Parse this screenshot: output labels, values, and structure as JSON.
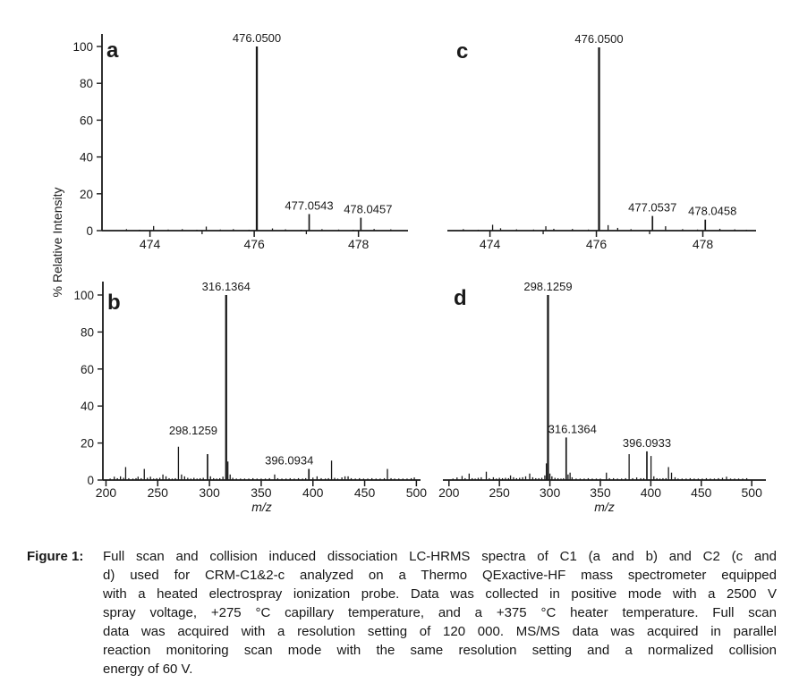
{
  "caption": {
    "label": "Figure 1:",
    "lines": [
      "Full scan and collision induced dissociation LC-HRMS spectra of C1 (a and b) and C2 (c and",
      "d) used for CRM-C1&2-c analyzed on a Thermo QExactive-HF mass spectrometer equipped",
      "with a heated electrospray ionization probe. Data was collected in positive mode with a 2500 V",
      "spray voltage, +275 °C capillary temperature, and a +375 °C heater temperature. Full scan",
      "data was acquired with a resolution setting of 120 000. MS/MS data was acquired in parallel",
      "reaction monitoring scan mode with the same resolution setting and a normalized collision",
      "energy of 60 V."
    ]
  },
  "chart_data": {
    "type": "bar",
    "variant": "mass-spectrum-grid",
    "shared_ylabel": "% Relative Intensity",
    "xlabel": "m/z",
    "ink_color": "#1a1a1a",
    "panels": [
      {
        "letter": "a",
        "xlim": [
          473.08,
          478.95
        ],
        "ylim": [
          0,
          100
        ],
        "x_major_ticks": [
          474,
          476,
          478
        ],
        "x_minor_ticks": [
          475,
          477
        ],
        "y_ticks": [
          0,
          20,
          40,
          60,
          80,
          100
        ],
        "has_y_axis": true,
        "has_x_title": false,
        "labeled_peaks": [
          {
            "mz": 476.05,
            "intensity": 100,
            "label": "476.0500"
          },
          {
            "mz": 477.054,
            "intensity": 9,
            "label": "477.0543"
          },
          {
            "mz": 478.046,
            "intensity": 7,
            "label": "478.0457"
          }
        ],
        "noise_peaks": [
          [
            473.55,
            0.8
          ],
          [
            473.8,
            0.5
          ],
          [
            474.07,
            2.5
          ],
          [
            474.35,
            0.6
          ],
          [
            474.62,
            0.8
          ],
          [
            474.9,
            0.5
          ],
          [
            475.08,
            2.2
          ],
          [
            475.35,
            0.6
          ],
          [
            475.6,
            0.8
          ],
          [
            475.9,
            0.5
          ],
          [
            476.35,
            1.2
          ],
          [
            476.6,
            0.7
          ],
          [
            476.9,
            0.5
          ],
          [
            477.3,
            0.8
          ],
          [
            477.62,
            0.6
          ],
          [
            477.9,
            0.5
          ],
          [
            478.3,
            0.9
          ],
          [
            478.62,
            0.7
          ]
        ]
      },
      {
        "letter": "c",
        "xlim": [
          473.2,
          479.0
        ],
        "ylim": [
          0,
          100
        ],
        "x_major_ticks": [
          474,
          476,
          478
        ],
        "x_minor_ticks": [
          475,
          477
        ],
        "y_ticks": [],
        "has_y_axis": false,
        "has_x_title": false,
        "labeled_peaks": [
          {
            "mz": 476.05,
            "intensity": 100,
            "label": "476.0500"
          },
          {
            "mz": 477.054,
            "intensity": 8,
            "label": "477.0537"
          },
          {
            "mz": 478.046,
            "intensity": 6,
            "label": "478.0458"
          }
        ],
        "noise_peaks": [
          [
            473.5,
            0.8
          ],
          [
            473.78,
            0.5
          ],
          [
            474.05,
            3.2
          ],
          [
            474.2,
            1.3
          ],
          [
            474.5,
            0.7
          ],
          [
            474.82,
            0.6
          ],
          [
            475.05,
            2.4
          ],
          [
            475.2,
            1.0
          ],
          [
            475.55,
            0.9
          ],
          [
            475.85,
            0.6
          ],
          [
            476.22,
            3.0
          ],
          [
            476.4,
            1.5
          ],
          [
            476.65,
            0.8
          ],
          [
            477.3,
            2.4
          ],
          [
            477.62,
            0.8
          ],
          [
            477.9,
            0.6
          ],
          [
            478.32,
            1.0
          ],
          [
            478.6,
            0.7
          ],
          [
            478.82,
            0.5
          ]
        ]
      },
      {
        "letter": "b",
        "xlim": [
          197,
          504
        ],
        "ylim": [
          0,
          100
        ],
        "x_major_ticks": [
          200,
          250,
          300,
          350,
          400,
          450,
          500
        ],
        "x_minor_ticks": [],
        "y_ticks": [
          0,
          20,
          40,
          60,
          80,
          100
        ],
        "has_y_axis": true,
        "has_x_title": true,
        "labeled_peaks": [
          {
            "mz": 298.1259,
            "intensity": 14,
            "label": "298.1259"
          },
          {
            "mz": 316.1364,
            "intensity": 100,
            "label": "316.1364"
          },
          {
            "mz": 396.0934,
            "intensity": 6,
            "label": "396.0934"
          }
        ],
        "noise_peaks": [
          [
            204,
            0.8
          ],
          [
            208,
            1.8
          ],
          [
            211,
            1.0
          ],
          [
            214,
            2.0
          ],
          [
            217,
            1.2
          ],
          [
            219,
            7
          ],
          [
            222,
            1.0
          ],
          [
            226,
            0.8
          ],
          [
            229,
            1.0
          ],
          [
            231,
            1.8
          ],
          [
            234,
            1.0
          ],
          [
            237,
            6
          ],
          [
            240,
            1.2
          ],
          [
            243,
            1.8
          ],
          [
            246,
            0.8
          ],
          [
            249,
            1.0
          ],
          [
            252,
            1.2
          ],
          [
            255,
            3
          ],
          [
            258,
            2
          ],
          [
            261,
            1.0
          ],
          [
            264,
            0.8
          ],
          [
            267,
            1.0
          ],
          [
            270,
            18
          ],
          [
            273,
            3
          ],
          [
            276,
            2
          ],
          [
            279,
            1.2
          ],
          [
            282,
            0.8
          ],
          [
            285,
            1.2
          ],
          [
            288,
            0.8
          ],
          [
            291,
            1.0
          ],
          [
            294,
            1.2
          ],
          [
            301,
            2
          ],
          [
            304,
            1.0
          ],
          [
            307,
            0.8
          ],
          [
            310,
            1.0
          ],
          [
            313,
            1.8
          ],
          [
            317.8,
            10
          ],
          [
            320,
            3
          ],
          [
            322.5,
            1.2
          ],
          [
            326,
            0.8
          ],
          [
            330,
            0.8
          ],
          [
            334,
            0.8
          ],
          [
            338,
            0.8
          ],
          [
            342,
            1.0
          ],
          [
            346,
            0.8
          ],
          [
            350,
            0.8
          ],
          [
            354,
            0.8
          ],
          [
            358,
            1.0
          ],
          [
            363,
            3
          ],
          [
            366,
            1.0
          ],
          [
            370,
            0.8
          ],
          [
            374,
            0.8
          ],
          [
            378,
            1.0
          ],
          [
            382,
            0.8
          ],
          [
            386,
            1.0
          ],
          [
            390,
            0.8
          ],
          [
            393,
            1.0
          ],
          [
            400,
            1.3
          ],
          [
            404,
            2
          ],
          [
            408,
            1.0
          ],
          [
            412,
            0.8
          ],
          [
            415,
            1.0
          ],
          [
            418,
            10.5
          ],
          [
            421,
            1.2
          ],
          [
            424,
            0.8
          ],
          [
            428,
            1.4
          ],
          [
            431,
            2
          ],
          [
            434,
            2
          ],
          [
            437,
            1.0
          ],
          [
            441,
            0.8
          ],
          [
            445,
            1.0
          ],
          [
            449,
            0.8
          ],
          [
            453,
            0.8
          ],
          [
            457,
            1.0
          ],
          [
            461,
            0.8
          ],
          [
            465,
            0.8
          ],
          [
            469,
            1.0
          ],
          [
            472,
            6
          ],
          [
            475.5,
            1.0
          ],
          [
            479,
            0.8
          ],
          [
            483,
            0.8
          ],
          [
            487,
            0.8
          ],
          [
            491,
            0.8
          ],
          [
            495,
            1.0
          ],
          [
            498,
            1.4
          ]
        ]
      },
      {
        "letter": "d",
        "xlim": [
          194,
          514
        ],
        "ylim": [
          0,
          100
        ],
        "x_major_ticks": [
          200,
          250,
          300,
          350,
          400,
          450,
          500
        ],
        "x_minor_ticks": [],
        "y_ticks": [],
        "has_y_axis": false,
        "has_x_title": true,
        "labeled_peaks": [
          {
            "mz": 298.1259,
            "intensity": 100,
            "label": "298.1259"
          },
          {
            "mz": 316.1364,
            "intensity": 23,
            "label": "316.1364"
          },
          {
            "mz": 396.0933,
            "intensity": 15.5,
            "label": "396.0933"
          }
        ],
        "noise_peaks": [
          [
            204,
            0.8
          ],
          [
            208,
            1.4
          ],
          [
            213,
            2.2
          ],
          [
            216,
            1.0
          ],
          [
            220,
            3.5
          ],
          [
            223,
            1.0
          ],
          [
            226,
            0.8
          ],
          [
            229,
            1.2
          ],
          [
            232,
            1.5
          ],
          [
            237,
            4.5
          ],
          [
            240,
            1.0
          ],
          [
            244,
            1.5
          ],
          [
            247,
            0.8
          ],
          [
            250,
            1.2
          ],
          [
            253,
            1.0
          ],
          [
            256,
            1.2
          ],
          [
            259,
            1.0
          ],
          [
            261,
            2.5
          ],
          [
            264,
            1.5
          ],
          [
            267,
            1.0
          ],
          [
            270,
            1.2
          ],
          [
            273,
            1.5
          ],
          [
            276,
            2.0
          ],
          [
            280,
            3.5
          ],
          [
            283,
            1.5
          ],
          [
            286,
            1.0
          ],
          [
            289,
            1.0
          ],
          [
            292,
            1.2
          ],
          [
            295,
            2.5
          ],
          [
            296.5,
            9
          ],
          [
            300,
            3.5
          ],
          [
            302,
            2
          ],
          [
            305,
            1.2
          ],
          [
            308,
            1.0
          ],
          [
            311,
            0.8
          ],
          [
            313.5,
            1.0
          ],
          [
            318,
            3
          ],
          [
            320,
            4
          ],
          [
            322,
            1.5
          ],
          [
            326,
            0.8
          ],
          [
            330,
            0.8
          ],
          [
            334,
            0.8
          ],
          [
            338,
            1.0
          ],
          [
            342,
            0.8
          ],
          [
            346,
            0.8
          ],
          [
            350,
            0.8
          ],
          [
            356,
            4
          ],
          [
            359,
            1.0
          ],
          [
            363,
            1.0
          ],
          [
            367,
            0.8
          ],
          [
            371,
            0.8
          ],
          [
            375,
            1.0
          ],
          [
            378.5,
            14
          ],
          [
            382,
            1.0
          ],
          [
            386,
            1.4
          ],
          [
            390,
            1.0
          ],
          [
            393,
            1.0
          ],
          [
            400.2,
            13
          ],
          [
            403,
            2
          ],
          [
            406,
            1.0
          ],
          [
            409,
            0.8
          ],
          [
            412,
            1.0
          ],
          [
            415,
            1.0
          ],
          [
            417.5,
            7
          ],
          [
            420.5,
            4
          ],
          [
            424,
            1.5
          ],
          [
            427,
            0.8
          ],
          [
            431,
            0.8
          ],
          [
            435,
            0.8
          ],
          [
            439,
            1.0
          ],
          [
            443,
            0.8
          ],
          [
            447,
            0.8
          ],
          [
            451,
            0.8
          ],
          [
            455,
            1.0
          ],
          [
            459,
            0.8
          ],
          [
            463,
            0.8
          ],
          [
            467,
            1.0
          ],
          [
            471,
            1.2
          ],
          [
            475,
            1.8
          ],
          [
            479,
            0.8
          ],
          [
            483,
            0.8
          ],
          [
            487,
            0.8
          ],
          [
            491,
            0.8
          ],
          [
            495,
            1.0
          ]
        ]
      }
    ]
  }
}
